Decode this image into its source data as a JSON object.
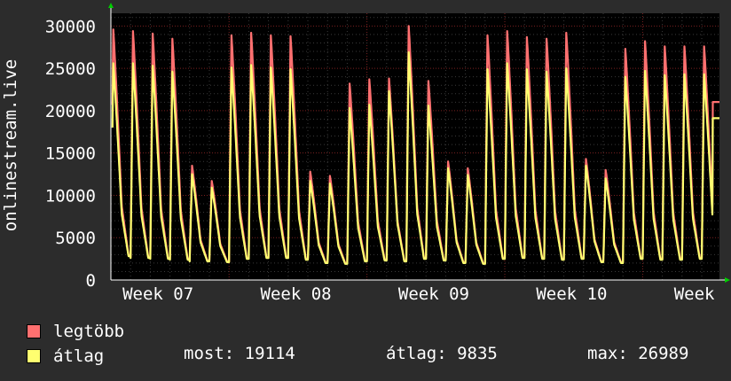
{
  "chart_data": {
    "type": "area",
    "ylabel": "onlinestream.live",
    "ylim": [
      0,
      31500
    ],
    "yticks": [
      0,
      5000,
      10000,
      15000,
      20000,
      25000,
      30000
    ],
    "xticks": [
      {
        "label": "Week 07",
        "day": 0.5
      },
      {
        "label": "Week 08",
        "day": 7.5
      },
      {
        "label": "Week 09",
        "day": 14.5
      },
      {
        "label": "Week 10",
        "day": 21.5
      },
      {
        "label": "Week",
        "day": 28.5
      }
    ],
    "xlim": [
      0,
      30.9
    ],
    "grid": true,
    "series": [
      {
        "name": "legtöbb",
        "color": "#ff7070",
        "daily_peaks": [
          29600,
          29400,
          29100,
          28500,
          13500,
          11700,
          28900,
          29200,
          28900,
          28800,
          12800,
          12300,
          23200,
          23700,
          23800,
          30000,
          23500,
          14000,
          13200,
          28900,
          29400,
          28700,
          28500,
          29200,
          14300,
          13000,
          27300,
          28200,
          27600,
          27600
        ],
        "daily_lows": [
          2900,
          2700,
          2600,
          2500,
          2300,
          2200,
          2600,
          2700,
          2700,
          2500,
          2100,
          2000,
          2300,
          2400,
          2300,
          2600,
          2400,
          2100,
          2000,
          2600,
          2700,
          2600,
          2500,
          2600,
          2200,
          2100,
          2600,
          2500,
          2500,
          2600
        ]
      },
      {
        "name": "átlag",
        "color": "#ffff70",
        "daily_peaks": [
          25600,
          25600,
          25300,
          24600,
          12500,
          10900,
          25100,
          25400,
          25100,
          24900,
          11700,
          11400,
          20300,
          20700,
          22300,
          26900,
          20600,
          13200,
          12400,
          24900,
          25600,
          24900,
          24600,
          25000,
          13500,
          12000,
          24000,
          24700,
          24200,
          24300
        ],
        "daily_lows": [
          2800,
          2600,
          2500,
          2400,
          2200,
          2100,
          2500,
          2600,
          2600,
          2400,
          2000,
          1900,
          2200,
          2300,
          2200,
          2500,
          2300,
          2000,
          1900,
          2500,
          2600,
          2500,
          2400,
          2500,
          2100,
          2000,
          2500,
          2400,
          2400,
          2500
        ],
        "last": 19114
      }
    ]
  },
  "legend": {
    "max_label": "legtöbb",
    "avg_label": "átlag",
    "max_color": "#ff7070",
    "avg_color": "#ffff70"
  },
  "stats": {
    "now": "most: 19114",
    "avg": "átlag: 9835",
    "max": "max: 26989"
  }
}
